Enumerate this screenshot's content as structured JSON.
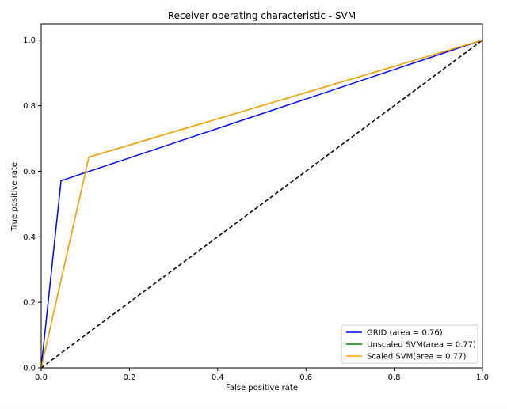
{
  "chart_data": {
    "type": "line",
    "title": "Receiver operating characteristic - SVM",
    "xlabel": "False positive rate",
    "ylabel": "True positive rate",
    "xlim": [
      0,
      1
    ],
    "ylim": [
      0,
      1.05
    ],
    "xticks": [
      "0.0",
      "0.2",
      "0.4",
      "0.6",
      "0.8",
      "1.0"
    ],
    "yticks": [
      "0.0",
      "0.2",
      "0.4",
      "0.6",
      "0.8",
      "1.0"
    ],
    "grid": false,
    "legend_position": "lower-right",
    "series": [
      {
        "name": "GRID (area = 0.76)",
        "color": "#0000ff",
        "x": [
          0,
          0.045,
          1.0
        ],
        "y": [
          0,
          0.571,
          1.0
        ]
      },
      {
        "name": "Unscaled SVM(area = 0.77)",
        "color": "#008000",
        "x": [
          0,
          0.108,
          1.0
        ],
        "y": [
          0,
          0.643,
          1.0
        ]
      },
      {
        "name": "Scaled SVM(area = 0.77)",
        "color": "#ffa500",
        "x": [
          0,
          0.108,
          1.0
        ],
        "y": [
          0,
          0.643,
          1.0
        ]
      }
    ],
    "diagonal": {
      "color": "#000000",
      "style": "dashed",
      "x": [
        0,
        1
      ],
      "y": [
        0,
        1
      ]
    }
  }
}
